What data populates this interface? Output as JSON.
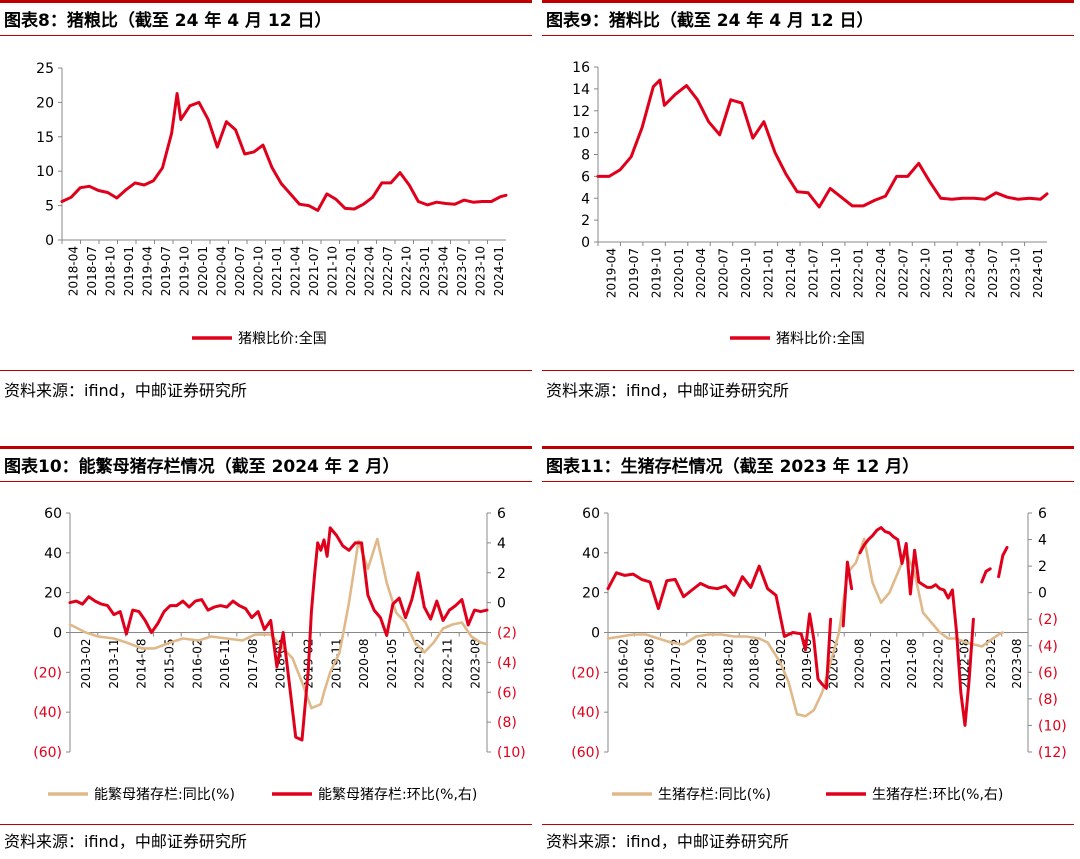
{
  "panels": [
    {
      "title": "图表8：猪粮比（截至 24 年 4 月 12 日）",
      "source": "资料来源：ifind，中邮证券研究所"
    },
    {
      "title": "图表9：猪料比（截至 24 年 4 月 12 日）",
      "source": "资料来源：ifind，中邮证券研究所"
    },
    {
      "title": "图表10：能繁母猪存栏情况（截至 2024 年 2 月）",
      "source": "资料来源：ifind，中邮证券研究所"
    },
    {
      "title": "图表11：生猪存栏情况（截至 2023 年 12 月）",
      "source": "资料来源：ifind，中邮证券研究所"
    }
  ],
  "colors": {
    "red": "#e0001b",
    "tan": "#e0b98a",
    "accent": "#c00000"
  },
  "chart_data": [
    {
      "type": "line",
      "x_ticks": [
        "2018-04",
        "2018-07",
        "2018-10",
        "2019-01",
        "2019-04",
        "2019-07",
        "2019-10",
        "2020-01",
        "2020-04",
        "2020-07",
        "2020-10",
        "2021-01",
        "2021-04",
        "2021-07",
        "2021-10",
        "2022-01",
        "2022-04",
        "2022-07",
        "2022-10",
        "2023-01",
        "2023-04",
        "2023-07",
        "2023-10",
        "2024-01"
      ],
      "y_ticks": [
        "0",
        "5",
        "10",
        "15",
        "20",
        "25"
      ],
      "ylim": [
        0,
        25
      ],
      "xlim": [
        0,
        24.3
      ],
      "series": [
        {
          "name": "猪粮比价:全国",
          "color": "#e0001b",
          "x": [
            0,
            0.5,
            1,
            1.5,
            2,
            2.5,
            3,
            3.5,
            4,
            4.5,
            5,
            5.5,
            6,
            6.3,
            6.5,
            7,
            7.5,
            8,
            8.5,
            9,
            9.5,
            10,
            10.5,
            11,
            11.5,
            12,
            12.5,
            13,
            13.5,
            14,
            14.5,
            15,
            15.5,
            16,
            16.5,
            17,
            17.5,
            18,
            18.5,
            19,
            19.5,
            20,
            20.5,
            21,
            21.5,
            22,
            22.5,
            23,
            23.5,
            24,
            24.3
          ],
          "y": [
            5.6,
            6.2,
            7.6,
            7.8,
            7.2,
            6.9,
            6.1,
            7.3,
            8.3,
            8.0,
            8.6,
            10.5,
            15.5,
            21.3,
            17.5,
            19.5,
            20.0,
            17.5,
            13.5,
            17.2,
            16.0,
            12.5,
            12.8,
            13.8,
            10.5,
            8.2,
            6.7,
            5.2,
            5.0,
            4.3,
            6.7,
            5.9,
            4.6,
            4.5,
            5.2,
            6.2,
            8.3,
            8.3,
            9.8,
            8.0,
            5.6,
            5.1,
            5.5,
            5.3,
            5.2,
            5.8,
            5.5,
            5.6,
            5.6,
            6.3,
            6.5
          ]
        }
      ],
      "legend": "bottom"
    },
    {
      "type": "line",
      "x_ticks": [
        "2019-04",
        "2019-07",
        "2019-10",
        "2020-01",
        "2020-04",
        "2020-07",
        "2020-10",
        "2021-01",
        "2021-04",
        "2021-07",
        "2021-10",
        "2022-01",
        "2022-04",
        "2022-07",
        "2022-10",
        "2023-01",
        "2023-04",
        "2023-07",
        "2023-10",
        "2024-01"
      ],
      "y_ticks": [
        "0",
        "2",
        "4",
        "6",
        "8",
        "10",
        "12",
        "14",
        "16"
      ],
      "ylim": [
        0,
        16
      ],
      "xlim": [
        0,
        20.3
      ],
      "series": [
        {
          "name": "猪料比价:全国",
          "color": "#e0001b",
          "x": [
            0,
            0.5,
            1,
            1.5,
            2,
            2.5,
            2.8,
            3,
            3.5,
            4,
            4.5,
            5,
            5.5,
            6,
            6.5,
            7,
            7.5,
            8,
            8.5,
            9,
            9.5,
            10,
            10.5,
            11,
            11.5,
            12,
            12.5,
            13,
            13.5,
            14,
            14.5,
            15,
            15.5,
            16,
            16.5,
            17,
            17.5,
            18,
            18.5,
            19,
            19.5,
            20,
            20.3
          ],
          "y": [
            6.0,
            6.0,
            6.6,
            7.8,
            10.5,
            14.2,
            14.8,
            12.5,
            13.5,
            14.3,
            13.0,
            11.0,
            9.8,
            13.0,
            12.7,
            9.5,
            11.0,
            8.2,
            6.2,
            4.6,
            4.5,
            3.2,
            4.9,
            4.1,
            3.3,
            3.3,
            3.8,
            4.2,
            6.0,
            6.0,
            7.2,
            5.5,
            4.0,
            3.9,
            4.0,
            4.0,
            3.9,
            4.5,
            4.1,
            3.9,
            4.0,
            3.9,
            4.4
          ]
        }
      ],
      "legend": "bottom"
    },
    {
      "type": "line",
      "x_ticks": [
        "2013-02",
        "2013-11",
        "2014-08",
        "2015-05",
        "2016-02",
        "2016-11",
        "2017-08",
        "2018-05",
        "2019-02",
        "2019-11",
        "2020-08",
        "2021-05",
        "2022-02",
        "2022-11",
        "2023-08"
      ],
      "y_ticks": [
        "60",
        "40",
        "20",
        "0",
        "(20)",
        "(40)",
        "(60)"
      ],
      "y_right_ticks": [
        "6",
        "4",
        "2",
        "0",
        "(2)",
        "(4)",
        "(6)",
        "(8)",
        "(10)"
      ],
      "ylim": [
        -60,
        60
      ],
      "y_right_lim": [
        -10,
        6
      ],
      "xlim": [
        0,
        133
      ],
      "series": [
        {
          "name": "能繁母猪存栏:同比(%)",
          "color": "#e0b98a",
          "axis": "left",
          "x": [
            0,
            5,
            9,
            14,
            18,
            23,
            27,
            32,
            36,
            41,
            45,
            50,
            55,
            59,
            64,
            68,
            71,
            74,
            77,
            80,
            81,
            83,
            86,
            89,
            92,
            95,
            98,
            101,
            104,
            107,
            110,
            113,
            116,
            119,
            122,
            125,
            128,
            131,
            133
          ],
          "y": [
            4,
            0,
            -2,
            -3,
            -5,
            -8,
            -8,
            -5,
            -3,
            -4,
            -2,
            -3,
            -4,
            -1,
            -1,
            -8,
            -13,
            -25,
            -38,
            -36,
            -30,
            -20,
            -10,
            15,
            46,
            32,
            47,
            25,
            10,
            5,
            -5,
            -10,
            -5,
            2,
            4,
            5,
            -2,
            -5,
            -6
          ]
        },
        {
          "name": "能繁母猪存栏:环比(%,右)",
          "color": "#e0001b",
          "axis": "right",
          "x": [
            0,
            2,
            4,
            6,
            8,
            10,
            12,
            14,
            16,
            18,
            20,
            22,
            24,
            26,
            28,
            30,
            32,
            34,
            36,
            38,
            40,
            42,
            44,
            46,
            48,
            50,
            52,
            54,
            56,
            58,
            60,
            62,
            64,
            66,
            68,
            70,
            72,
            74,
            76,
            77,
            78,
            79,
            80,
            81,
            82,
            83,
            85,
            87,
            89,
            91,
            93,
            95,
            97,
            99,
            101,
            103,
            105,
            107,
            109,
            111,
            113,
            115,
            117,
            119,
            121,
            123,
            125,
            127,
            129,
            131,
            133
          ],
          "y": [
            0,
            0.1,
            -0.1,
            0.4,
            0.1,
            -0.1,
            -0.2,
            -0.8,
            -0.6,
            -2.1,
            -0.5,
            -0.6,
            -1.2,
            -2.0,
            -1.4,
            -0.6,
            -0.2,
            -0.2,
            0.1,
            -0.3,
            0.1,
            0.2,
            -0.5,
            -0.3,
            -0.2,
            -0.3,
            0.1,
            -0.2,
            -0.4,
            -1.0,
            -0.6,
            -1.8,
            -1.2,
            -4.3,
            -2.0,
            -5.5,
            -9.0,
            -9.2,
            -4.5,
            -0.6,
            1.9,
            4.0,
            3.5,
            4.2,
            3.1,
            5.0,
            4.5,
            3.8,
            3.5,
            4.0,
            4.0,
            0.5,
            -0.5,
            -1.0,
            -2.2,
            -0.1,
            0.3,
            -1.0,
            0.2,
            2.0,
            -0.3,
            -1.1,
            0.1,
            -1.2,
            -0.5,
            -0.2,
            0.2,
            -1.5,
            -0.5,
            -0.6,
            -0.5
          ]
        }
      ],
      "legend": "bottom"
    },
    {
      "type": "line",
      "x_ticks": [
        "2016-02",
        "2016-08",
        "2017-02",
        "2017-08",
        "2018-02",
        "2018-08",
        "2019-02",
        "2019-08",
        "2020-02",
        "2020-08",
        "2021-02",
        "2021-08",
        "2022-02",
        "2022-08",
        "2023-02",
        "2023-08"
      ],
      "y_ticks": [
        "60",
        "40",
        "20",
        "0",
        "(20)",
        "(40)",
        "(60)"
      ],
      "y_right_ticks": [
        "6",
        "4",
        "2",
        "0",
        "(2)",
        "(4)",
        "(6)",
        "(8)",
        "(10)",
        "(12)"
      ],
      "ylim": [
        -60,
        60
      ],
      "y_right_lim": [
        -12,
        6
      ],
      "xlim": [
        0,
        100
      ],
      "series": [
        {
          "name": "生猪存栏:同比(%)",
          "color": "#e0b98a",
          "axis": "left",
          "segments": [
            {
              "x": [
                0,
                3,
                6,
                9,
                12,
                15,
                18,
                21,
                24,
                27,
                30,
                33,
                36,
                38,
                41,
                43,
                45,
                47,
                49,
                51,
                53,
                55,
                57,
                59,
                61,
                63,
                65,
                67,
                69,
                71,
                73,
                75,
                77,
                79,
                81,
                83,
                85,
                87,
                89,
                91,
                93,
                94
              ],
              "y": [
                -3,
                -2,
                -1,
                -1,
                -3,
                -5,
                -6,
                -2,
                -1,
                -1,
                -2,
                -2,
                -3,
                -5,
                -15,
                -25,
                -41,
                -42,
                -39,
                -30,
                -15,
                0,
                30,
                35,
                47,
                25,
                15,
                20,
                30,
                40,
                30,
                10,
                5,
                0,
                -3,
                -3,
                -5,
                -6,
                -7,
                -4,
                -1,
                0
              ]
            }
          ]
        },
        {
          "name": "生猪存栏:环比(%,右)",
          "color": "#e0001b",
          "axis": "right",
          "segments": [
            {
              "x": [
                0,
                2,
                4,
                6,
                8,
                10,
                12,
                14,
                16,
                18,
                20,
                22,
                24,
                26,
                28,
                30,
                32,
                34,
                36,
                38,
                40,
                42,
                44,
                46,
                47,
                48,
                49,
                50,
                51,
                52,
                53
              ],
              "y": [
                0.3,
                1.5,
                1.3,
                1.4,
                1.0,
                0.8,
                -1.2,
                0.9,
                1.0,
                -0.3,
                0.2,
                0.7,
                0.4,
                0.3,
                0.5,
                -0.2,
                1.2,
                0.4,
                2.0,
                0.3,
                -0.2,
                -3.3,
                -3.0,
                -3.1,
                -4.3,
                -1.6,
                -3.5,
                -6.5,
                -6.9,
                -7.2,
                -2.0
              ]
            },
            {
              "x": [
                56,
                57,
                58
              ],
              "y": [
                -2.5,
                2.3,
                0.3
              ]
            },
            {
              "x": [
                60,
                61,
                62,
                63,
                64,
                65,
                66,
                67,
                68,
                69,
                70,
                71,
                72,
                73,
                74,
                75,
                76,
                77,
                78,
                79,
                80,
                81,
                82,
                83,
                84,
                85,
                86,
                87
              ],
              "y": [
                3.0,
                3.6,
                4.0,
                4.3,
                4.7,
                4.9,
                4.6,
                4.5,
                4.2,
                4.0,
                2.2,
                3.7,
                -0.1,
                3.2,
                0.8,
                0.6,
                0.4,
                0.4,
                0.6,
                0.3,
                0.2,
                -0.4,
                0.2,
                -3.0,
                -7.5,
                -10.0,
                -6.5,
                -2.0
              ]
            },
            {
              "x": [
                89,
                90,
                91
              ],
              "y": [
                0.8,
                1.6,
                1.8
              ]
            },
            {
              "x": [
                93,
                94,
                95
              ],
              "y": [
                1.2,
                2.8,
                3.4
              ]
            }
          ]
        }
      ],
      "legend": "bottom"
    }
  ]
}
